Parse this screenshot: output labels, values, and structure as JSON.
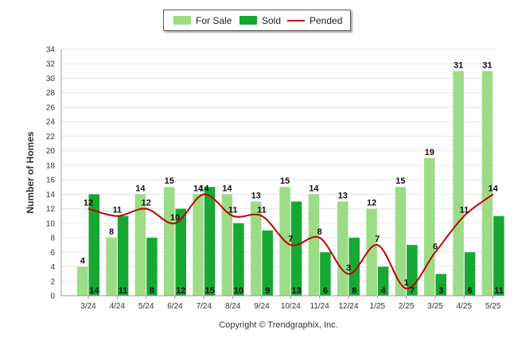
{
  "chart_data": {
    "type": "bar",
    "ylabel": "Number of Homes",
    "xlabel": "",
    "ylim": [
      0,
      34
    ],
    "yticks": [
      "0",
      "2",
      "4",
      "6",
      "8",
      "10",
      "12",
      "14",
      "16",
      "18",
      "20",
      "22",
      "24",
      "26",
      "28",
      "30",
      "32",
      "34"
    ],
    "grid": true,
    "legend_position": "top-center",
    "categories": [
      "3/24",
      "4/24",
      "5/24",
      "6/24",
      "7/24",
      "8/24",
      "9/24",
      "10/24",
      "11/24",
      "12/24",
      "1/25",
      "2/25",
      "3/25",
      "4/25",
      "5/25"
    ],
    "series": [
      {
        "name": "For Sale",
        "kind": "bar",
        "color": "#9ddc86",
        "values": [
          4,
          8,
          14,
          15,
          14,
          14,
          13,
          15,
          14,
          13,
          12,
          15,
          19,
          31,
          31
        ]
      },
      {
        "name": "Sold",
        "kind": "bar",
        "color": "#17a833",
        "values": [
          14,
          11,
          8,
          12,
          15,
          10,
          9,
          13,
          6,
          8,
          4,
          7,
          3,
          6,
          11
        ]
      },
      {
        "name": "Pended",
        "kind": "line",
        "color": "#c00000",
        "values": [
          12,
          11,
          12,
          10,
          14,
          11,
          11,
          7,
          8,
          3,
          7,
          1,
          6,
          11,
          14
        ]
      }
    ],
    "footer": "Copyright © Trendgraphix, Inc."
  }
}
